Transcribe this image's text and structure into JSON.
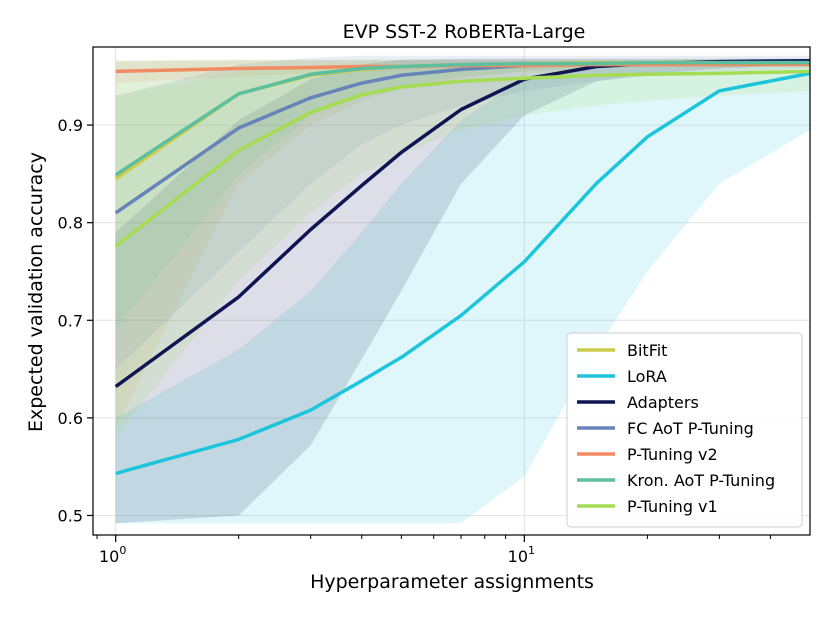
{
  "chart_data": {
    "type": "line",
    "title": "EVP SST-2 RoBERTa-Large",
    "xlabel": "Hyperparameter assignments",
    "ylabel": "Expected validation accuracy",
    "x_scale": "log",
    "xlim": [
      0.88,
      50
    ],
    "ylim": [
      0.48,
      0.98
    ],
    "x_ticks": [
      {
        "value": 1,
        "base": "10",
        "exp": "0"
      },
      {
        "value": 10,
        "base": "10",
        "exp": "1"
      }
    ],
    "y_ticks": [
      0.5,
      0.6,
      0.7,
      0.8,
      0.9
    ],
    "y_tick_labels": [
      "0.5",
      "0.6",
      "0.7",
      "0.8",
      "0.9"
    ],
    "grid": true,
    "legend_position": "bottom-right",
    "x": [
      1,
      2,
      3,
      4,
      5,
      7,
      10,
      15,
      20,
      30,
      50
    ],
    "series": [
      {
        "name": "BitFit",
        "color": "#cdcb4a",
        "values": [
          0.845,
          0.932,
          0.951,
          0.957,
          0.96,
          0.962,
          0.963,
          0.964,
          0.964,
          0.965,
          0.965
        ],
        "band_lower": [
          0.59,
          0.84,
          0.9,
          0.925,
          0.937,
          0.948,
          0.955,
          0.958,
          0.96,
          0.961,
          0.962
        ],
        "band_upper": [
          0.966,
          0.967,
          0.967,
          0.967,
          0.967,
          0.967,
          0.967,
          0.967,
          0.967,
          0.967,
          0.967
        ]
      },
      {
        "name": "LoRA",
        "color": "#1dc5dc",
        "values": [
          0.543,
          0.578,
          0.608,
          0.638,
          0.662,
          0.705,
          0.76,
          0.84,
          0.888,
          0.935,
          0.953
        ],
        "band_lower": [
          0.492,
          0.492,
          0.492,
          0.492,
          0.492,
          0.492,
          0.54,
          0.67,
          0.75,
          0.84,
          0.895
        ],
        "band_upper": [
          0.6,
          0.67,
          0.73,
          0.79,
          0.84,
          0.905,
          0.948,
          0.96,
          0.962,
          0.963,
          0.963
        ]
      },
      {
        "name": "Adapters",
        "color": "#0f1552",
        "values": [
          0.632,
          0.724,
          0.793,
          0.838,
          0.872,
          0.916,
          0.947,
          0.96,
          0.963,
          0.965,
          0.966
        ],
        "band_lower": [
          0.492,
          0.5,
          0.572,
          0.66,
          0.73,
          0.84,
          0.91,
          0.945,
          0.952,
          0.958,
          0.962
        ],
        "band_upper": [
          0.79,
          0.905,
          0.947,
          0.962,
          0.967,
          0.968,
          0.968,
          0.968,
          0.968,
          0.968,
          0.968
        ]
      },
      {
        "name": "FC AoT P-Tuning",
        "color": "#6784b8",
        "values": [
          0.81,
          0.897,
          0.928,
          0.943,
          0.951,
          0.957,
          0.961,
          0.963,
          0.963,
          0.964,
          0.964
        ],
        "band_lower": [
          0.65,
          0.77,
          0.84,
          0.88,
          0.9,
          0.92,
          0.935,
          0.945,
          0.95,
          0.955,
          0.958
        ],
        "band_upper": [
          0.93,
          0.962,
          0.969,
          0.971,
          0.971,
          0.971,
          0.971,
          0.971,
          0.971,
          0.971,
          0.971
        ]
      },
      {
        "name": "P-Tuning v2",
        "color": "#f08b62",
        "values": [
          0.955,
          0.958,
          0.959,
          0.96,
          0.96,
          0.961,
          0.961,
          0.962,
          0.962,
          0.962,
          0.962
        ],
        "band_lower": [
          0.943,
          0.95,
          0.953,
          0.955,
          0.956,
          0.957,
          0.958,
          0.959,
          0.959,
          0.96,
          0.96
        ],
        "band_upper": [
          0.965,
          0.966,
          0.966,
          0.966,
          0.966,
          0.966,
          0.966,
          0.966,
          0.966,
          0.966,
          0.966
        ]
      },
      {
        "name": "Kron. AoT P-Tuning",
        "color": "#5cbf9e",
        "values": [
          0.849,
          0.932,
          0.952,
          0.958,
          0.96,
          0.962,
          0.963,
          0.963,
          0.964,
          0.964,
          0.964
        ],
        "band_lower": [
          0.69,
          0.85,
          0.91,
          0.93,
          0.94,
          0.95,
          0.955,
          0.958,
          0.96,
          0.961,
          0.962
        ],
        "band_upper": [
          0.966,
          0.967,
          0.967,
          0.967,
          0.967,
          0.967,
          0.967,
          0.967,
          0.967,
          0.967,
          0.967
        ]
      },
      {
        "name": "P-Tuning v1",
        "color": "#a4dc52",
        "values": [
          0.776,
          0.874,
          0.913,
          0.931,
          0.939,
          0.945,
          0.948,
          0.951,
          0.952,
          0.953,
          0.955
        ],
        "band_lower": [
          0.58,
          0.74,
          0.81,
          0.85,
          0.87,
          0.895,
          0.91,
          0.92,
          0.925,
          0.93,
          0.935
        ],
        "band_upper": [
          0.93,
          0.955,
          0.96,
          0.961,
          0.961,
          0.961,
          0.961,
          0.961,
          0.961,
          0.961,
          0.961
        ]
      }
    ]
  }
}
